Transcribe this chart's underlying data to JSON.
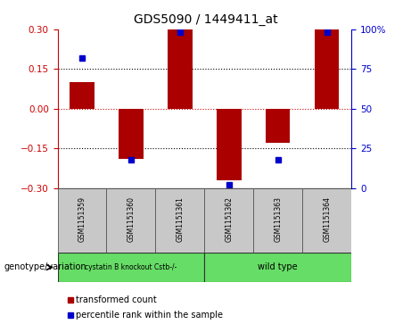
{
  "title": "GDS5090 / 1449411_at",
  "samples": [
    "GSM1151359",
    "GSM1151360",
    "GSM1151361",
    "GSM1151362",
    "GSM1151363",
    "GSM1151364"
  ],
  "bar_values": [
    0.1,
    -0.19,
    0.3,
    -0.27,
    -0.13,
    0.3
  ],
  "percentile_values": [
    0.82,
    0.18,
    0.98,
    0.02,
    0.18,
    0.98
  ],
  "bar_color": "#aa0000",
  "dot_color": "#0000cc",
  "ylim": [
    -0.3,
    0.3
  ],
  "yticks_left": [
    -0.3,
    -0.15,
    0,
    0.15,
    0.3
  ],
  "yticks_right": [
    0,
    25,
    50,
    75,
    100
  ],
  "group_header": "genotype/variation",
  "group1_label": "cystatin B knockout Cstb-/-",
  "group2_label": "wild type",
  "legend_bar_label": "transformed count",
  "legend_dot_label": "percentile rank within the sample",
  "hline_color": "#cc0000",
  "dotted_line_color": "#000000",
  "bar_width": 0.5,
  "background_color": "#ffffff",
  "label_area_bg": "#c8c8c8",
  "group_color": "#66dd66"
}
